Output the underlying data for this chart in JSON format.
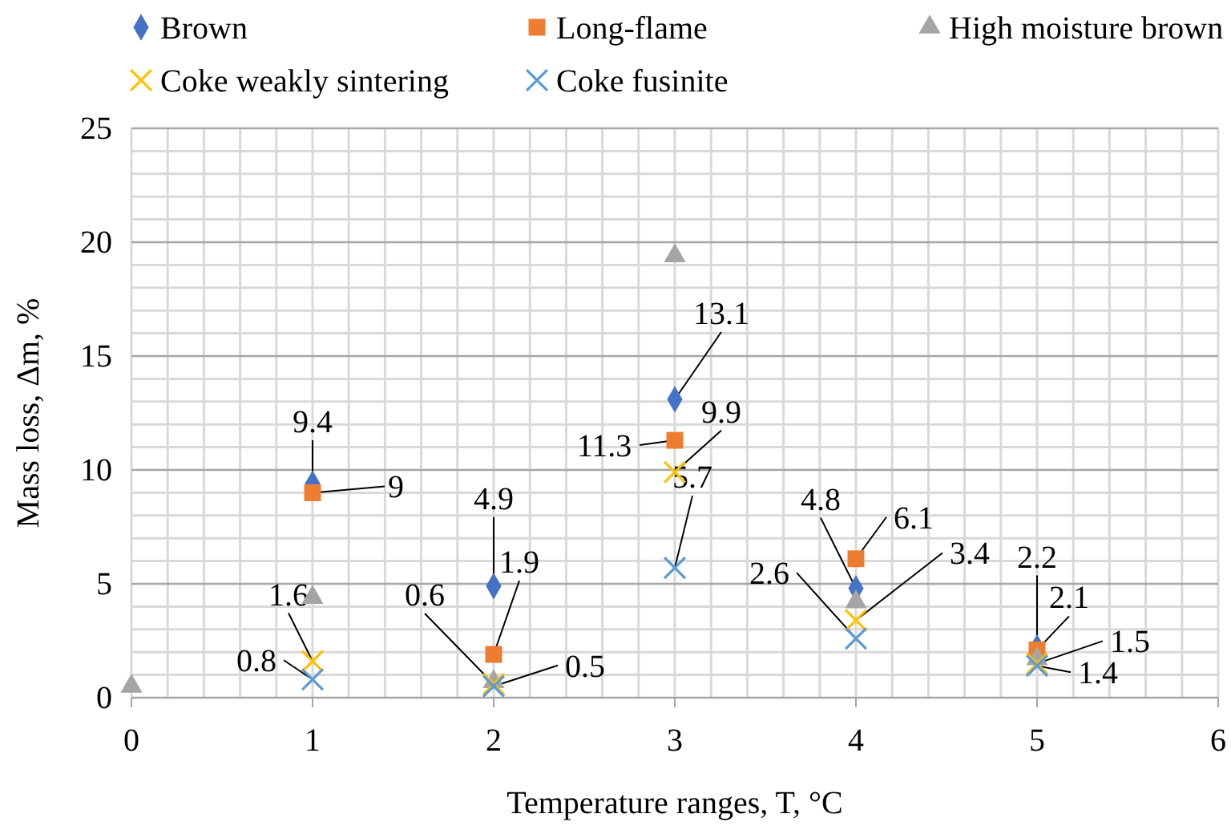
{
  "chart_data": {
    "type": "scatter",
    "xlabel": "Temperature ranges, T, °C",
    "ylabel": "Mass loss, Δm, %",
    "xlim": [
      0,
      6
    ],
    "xticks": [
      0,
      1,
      2,
      3,
      4,
      5,
      6
    ],
    "ylim": [
      0,
      25
    ],
    "yticks": [
      0,
      5,
      10,
      15,
      20,
      25
    ],
    "grid": true,
    "legend": "top",
    "series": [
      {
        "name": "Brown",
        "color": "#4472c4",
        "marker": "diamond",
        "x": [
          1,
          2,
          3,
          4,
          5
        ],
        "values": [
          9.4,
          4.9,
          13.1,
          4.8,
          2.2
        ],
        "value_labels": [
          "9.4",
          "4.9",
          "13.1",
          "4.8",
          "2.2"
        ]
      },
      {
        "name": "Long-flame",
        "color": "#ed7d31",
        "marker": "square",
        "x": [
          1,
          2,
          3,
          4,
          5
        ],
        "values": [
          9,
          1.9,
          11.3,
          6.1,
          2.1
        ],
        "value_labels": [
          "9",
          "1.9",
          "11.3",
          "6.1",
          "2.1"
        ]
      },
      {
        "name": "High moisture brown",
        "color": "#a5a5a5",
        "marker": "triangle",
        "x": [
          0,
          1,
          2,
          3,
          4,
          5
        ],
        "values": [
          0.5,
          4.4,
          0.7,
          19.4,
          4.2,
          1.7
        ]
      },
      {
        "name": "Coke weakly sintering",
        "color": "#ffc000",
        "marker": "cross",
        "x": [
          1,
          2,
          3,
          4,
          5
        ],
        "values": [
          1.6,
          0.6,
          9.9,
          3.4,
          1.5
        ],
        "value_labels": [
          "1.6",
          "0.6",
          "9.9",
          "3.4",
          "1.5"
        ]
      },
      {
        "name": "Coke fusinite",
        "color": "#5b9bd5",
        "marker": "cross",
        "x": [
          1,
          2,
          3,
          4,
          5
        ],
        "values": [
          0.8,
          0.5,
          5.7,
          2.6,
          1.4
        ],
        "value_labels": [
          "0.8",
          "0.5",
          "5.7",
          "2.6",
          "1.4"
        ]
      }
    ]
  }
}
